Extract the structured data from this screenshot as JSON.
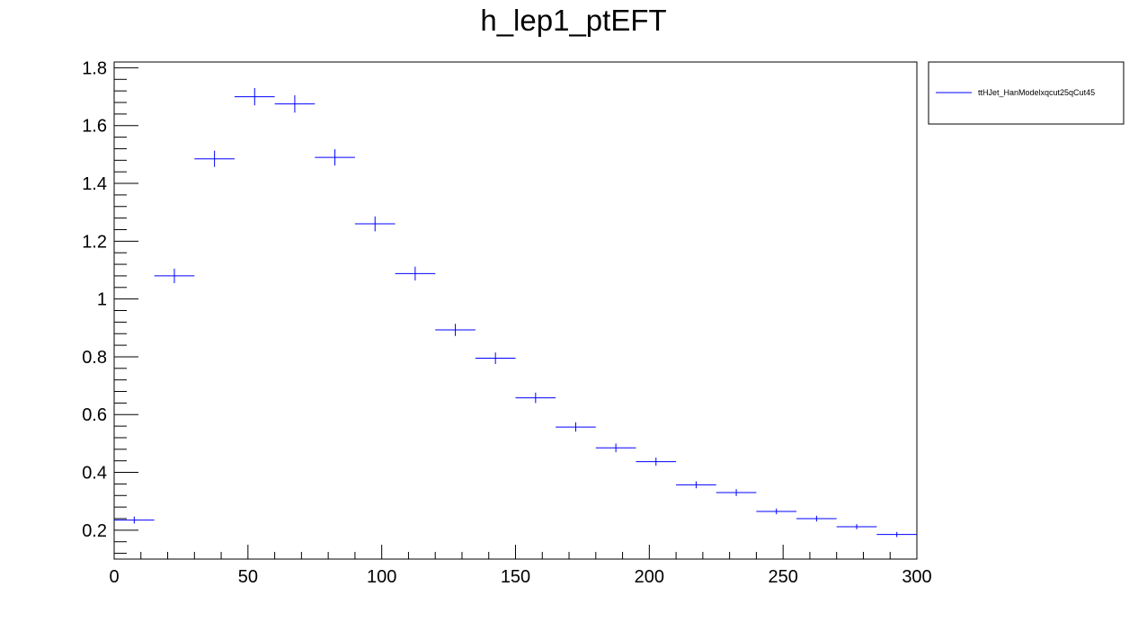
{
  "page": {
    "title": "h_lep1_ptEFT"
  },
  "legend": {
    "label": "ttHJet_HanModelxqcut25qCut45"
  },
  "chart_data": {
    "type": "scatter",
    "title": "h_lep1_ptEFT",
    "xlabel": "",
    "ylabel": "",
    "xlim": [
      0,
      300
    ],
    "ylim": [
      0.1,
      1.82
    ],
    "grid": false,
    "legend_position": "top-right-outside",
    "x_ticks": [
      0,
      50,
      100,
      150,
      200,
      250,
      300
    ],
    "x_tick_labels": [
      "0",
      "50",
      "100",
      "150",
      "200",
      "250",
      "300"
    ],
    "y_ticks": [
      0.2,
      0.4,
      0.6,
      0.8,
      1.0,
      1.2,
      1.4,
      1.6,
      1.8
    ],
    "y_tick_labels": [
      "0.2",
      "0.4",
      "0.6",
      "0.8",
      "1",
      "1.2",
      "1.4",
      "1.6",
      "1.8"
    ],
    "series": [
      {
        "name": "ttHJet_HanModelxqcut25qCut45",
        "color": "#0000ff",
        "bin_width": 15,
        "x": [
          7.5,
          22.5,
          37.5,
          52.5,
          67.5,
          82.5,
          97.5,
          112.5,
          127.5,
          142.5,
          157.5,
          172.5,
          187.5,
          202.5,
          217.5,
          232.5,
          247.5,
          262.5,
          277.5,
          292.5
        ],
        "y": [
          0.235,
          1.08,
          1.485,
          1.7,
          1.675,
          1.49,
          1.26,
          1.088,
          0.893,
          0.795,
          0.658,
          0.557,
          0.485,
          0.437,
          0.357,
          0.33,
          0.265,
          0.24,
          0.212,
          0.185
        ],
        "y_err": [
          0.012,
          0.025,
          0.028,
          0.03,
          0.03,
          0.028,
          0.026,
          0.024,
          0.021,
          0.02,
          0.018,
          0.016,
          0.015,
          0.014,
          0.012,
          0.012,
          0.01,
          0.01,
          0.009,
          0.009
        ]
      }
    ]
  }
}
